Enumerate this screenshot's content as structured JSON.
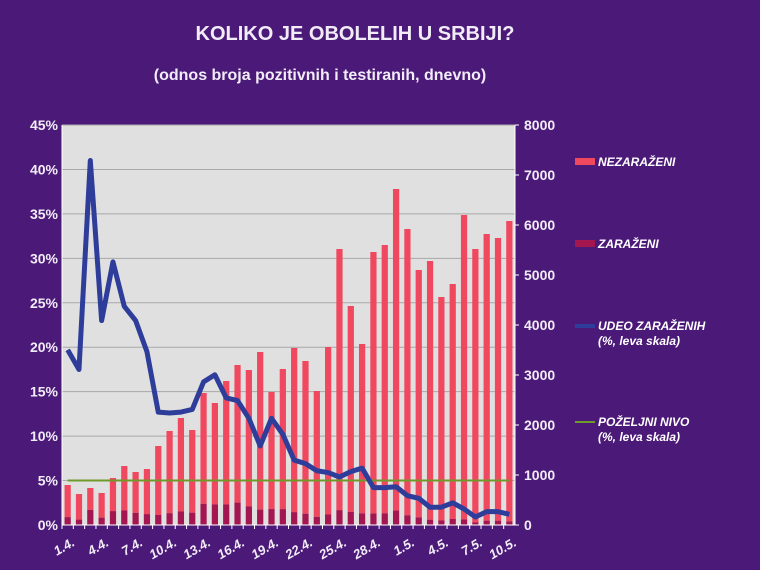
{
  "chart_data": {
    "type": "bar",
    "title": "KOLIKO JE OBOLELIH U SRBIJI?",
    "subtitle": "(odnos broja pozitivnih i testiranih, dnevno)",
    "categories": [
      "1.4.",
      "2.4.",
      "3.4.",
      "4.4.",
      "5.4.",
      "6.4.",
      "7.4.",
      "8.4.",
      "9.4.",
      "10.4.",
      "11.4.",
      "12.4.",
      "13.4.",
      "14.4.",
      "15.4.",
      "16.4.",
      "17.4.",
      "18.4.",
      "19.4.",
      "20.4.",
      "21.4.",
      "22.4.",
      "23.4.",
      "24.4.",
      "25.4.",
      "26.4.",
      "27.4.",
      "28.4.",
      "29.4.",
      "30.4.",
      "1.5.",
      "2.5.",
      "3.5.",
      "4.5.",
      "5.5.",
      "6.5.",
      "7.5.",
      "8.5.",
      "9.5.",
      "10.5."
    ],
    "tick_labels": [
      "1.4.",
      "4.4.",
      "7.4.",
      "10.4.",
      "13.4.",
      "16.4.",
      "19.4.",
      "22.4.",
      "25.4.",
      "28.4.",
      "1.5.",
      "4.5.",
      "7.5.",
      "10.5."
    ],
    "left_axis": {
      "range": [
        0,
        45
      ],
      "ticks": [
        "0%",
        "5%",
        "10%",
        "15%",
        "20%",
        "25%",
        "30%",
        "35%",
        "40%",
        "45%"
      ]
    },
    "right_axis": {
      "range": [
        0,
        8000
      ],
      "ticks": [
        "0",
        "1000",
        "2000",
        "3000",
        "4000",
        "5000",
        "6000",
        "7000",
        "8000"
      ]
    },
    "grid": true,
    "legend_placement": "right",
    "series": [
      {
        "name": "NEZARAŽENI",
        "kind": "stacked-bar",
        "axis": "right",
        "color": "#f0485f",
        "values": [
          642,
          512,
          437,
          493,
          662,
          890,
          816,
          902,
          1380,
          1643,
          1868,
          1653,
          2215,
          2028,
          2468,
          2752,
          2728,
          3152,
          2341,
          2802,
          3282,
          3054,
          2517,
          3350,
          5222,
          4117,
          3388,
          5231,
          5365,
          6431,
          5725,
          4947,
          5174,
          4469,
          4699,
          6088,
          5470,
          5733,
          5654,
          6007
        ]
      },
      {
        "name": "ZARAŽENI",
        "kind": "stacked-bar",
        "axis": "right",
        "color": "#a3164f",
        "values": [
          158,
          108,
          303,
          147,
          278,
          290,
          244,
          218,
          200,
          237,
          272,
          247,
          425,
          412,
          412,
          448,
          372,
          308,
          319,
          318,
          258,
          226,
          163,
          210,
          298,
          263,
          232,
          229,
          235,
          289,
          195,
          153,
          106,
          91,
          121,
          112,
          50,
          87,
          86,
          73
        ]
      },
      {
        "name": "UDEO ZARAŽENIH",
        "name2": "(%, leva skala)",
        "kind": "line",
        "axis": "left",
        "color": "#2e3d9a",
        "values": [
          19.7,
          17.5,
          41,
          23,
          29.6,
          24.6,
          23,
          19.5,
          12.7,
          12.6,
          12.7,
          13,
          16.1,
          16.9,
          14.3,
          14,
          12,
          8.9,
          12,
          10.2,
          7.3,
          6.9,
          6.1,
          5.9,
          5.4,
          6,
          6.4,
          4.2,
          4.2,
          4.3,
          3.3,
          3,
          2,
          2,
          2.5,
          1.8,
          0.9,
          1.5,
          1.5,
          1.2
        ]
      },
      {
        "name": "POŽELJNI NIVO",
        "name2": "(%, leva skala)",
        "kind": "line",
        "axis": "left",
        "color": "#6e9a2a",
        "value": 5
      }
    ]
  }
}
